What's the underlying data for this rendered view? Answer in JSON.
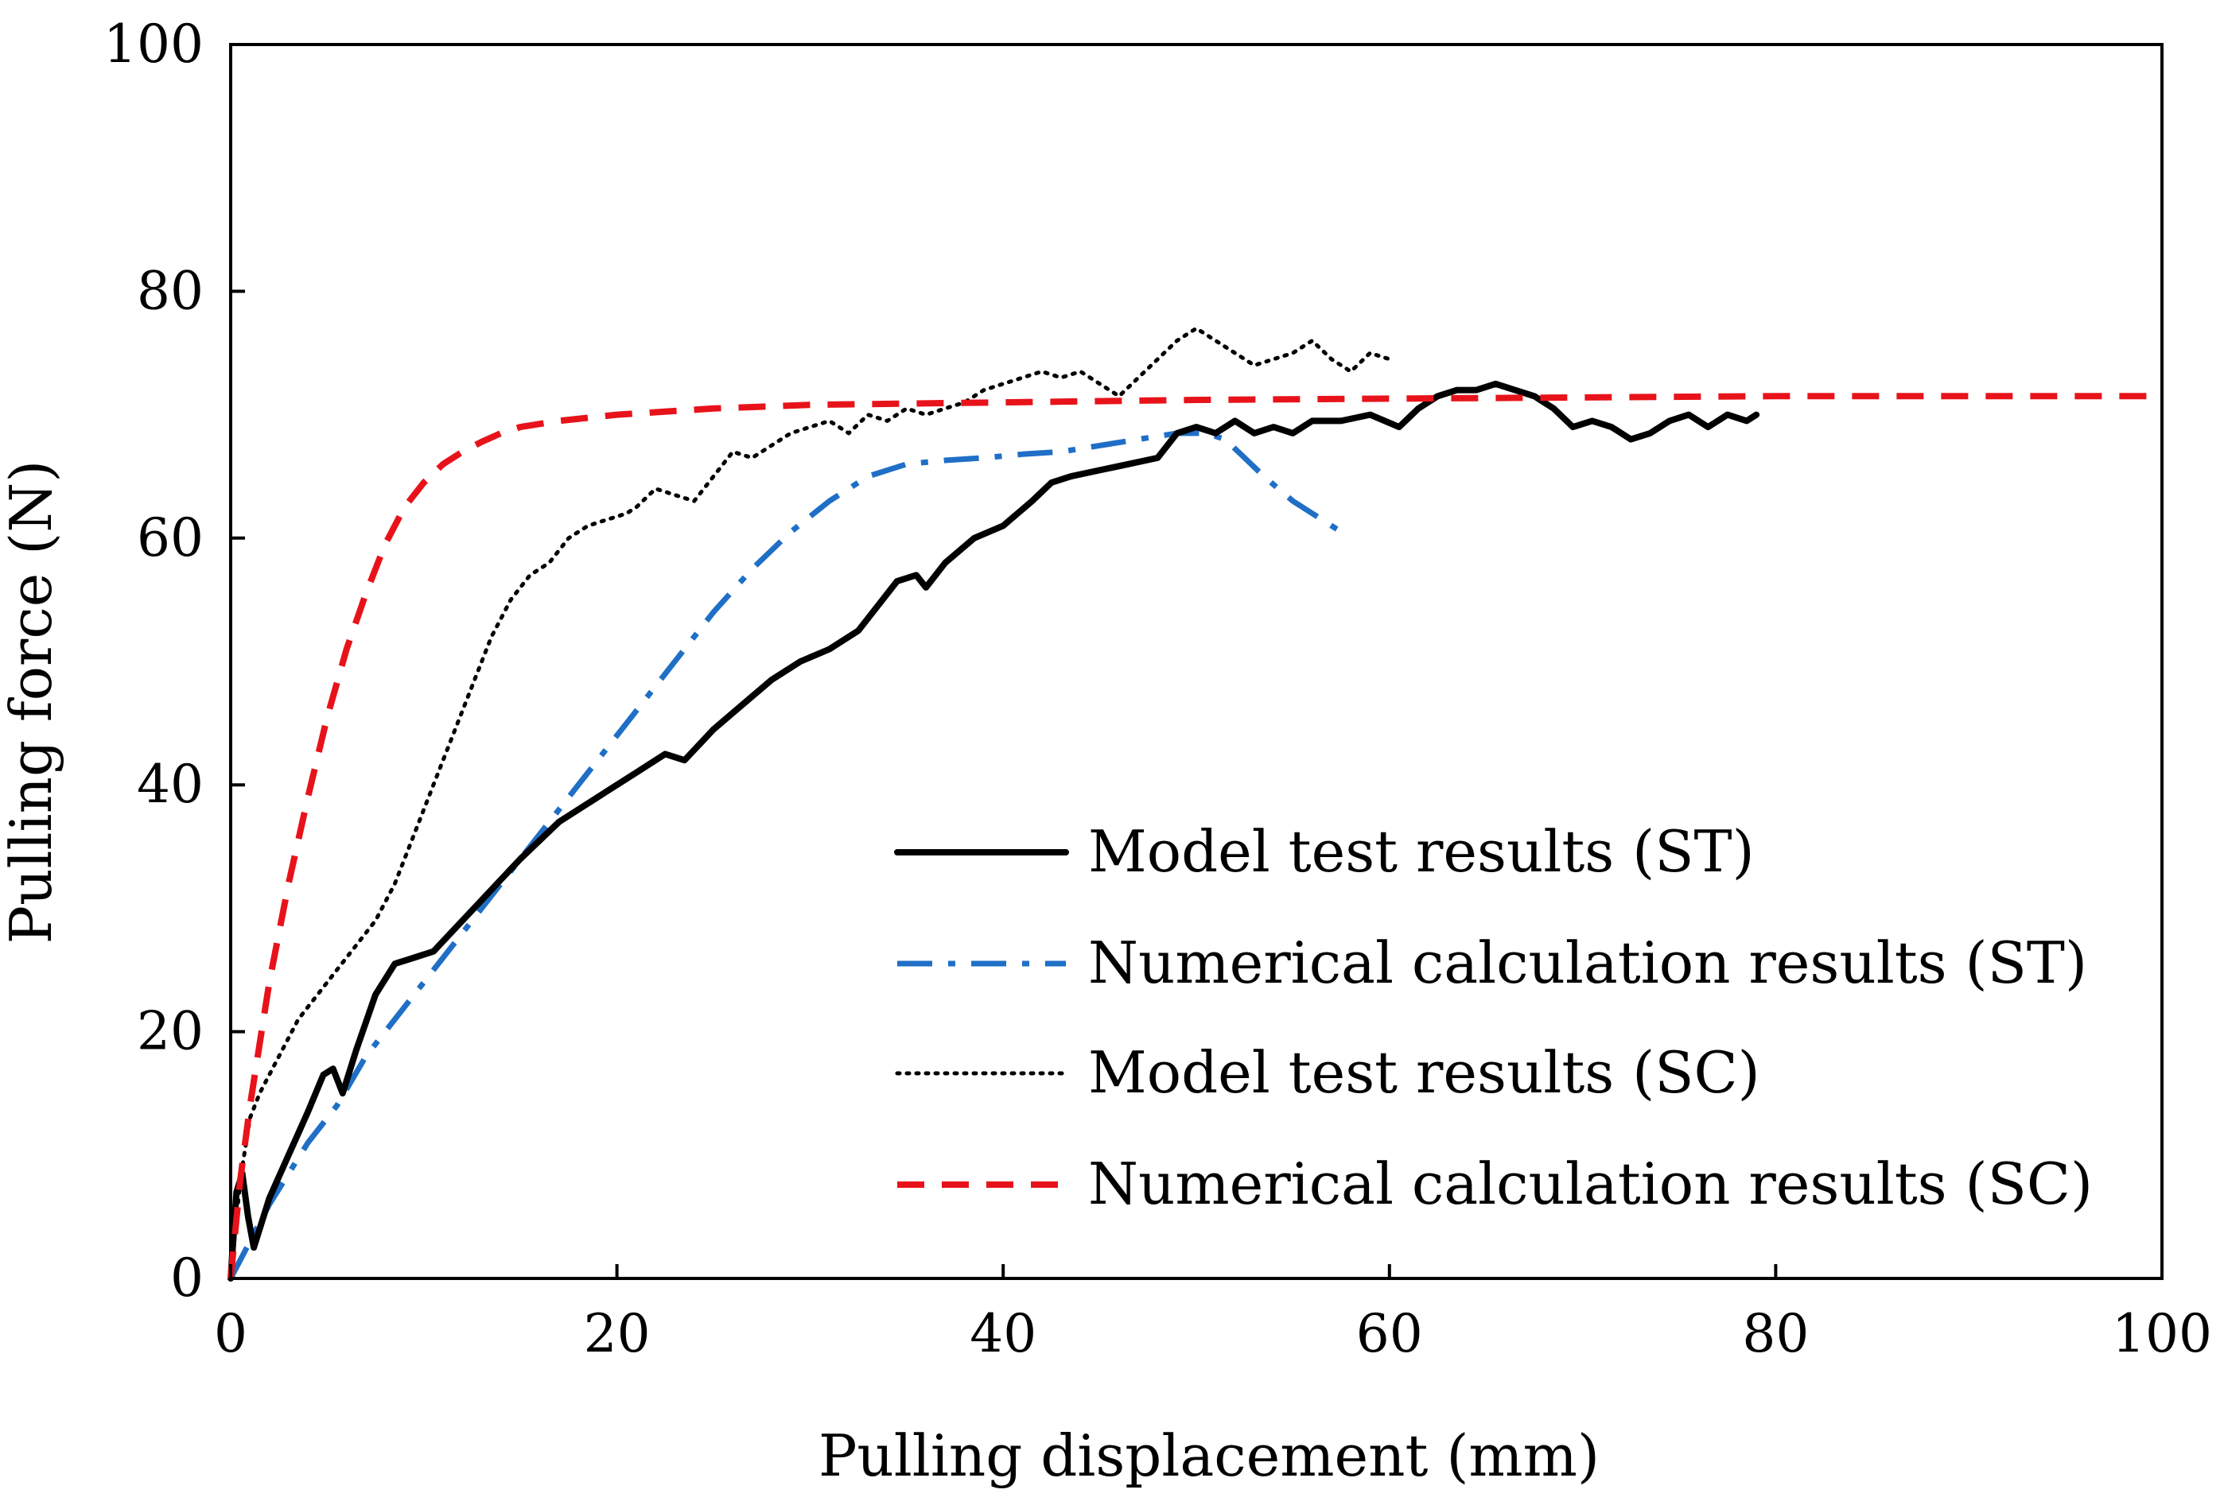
{
  "chart_data": {
    "type": "line",
    "title": "",
    "xlabel": "Pulling displacement (mm)",
    "ylabel": "Pulling force (N)",
    "xlim": [
      0,
      100
    ],
    "ylim": [
      0,
      100
    ],
    "xticks": [
      0,
      20,
      40,
      60,
      80,
      100
    ],
    "yticks": [
      0,
      20,
      40,
      60,
      80,
      100
    ],
    "grid": false,
    "legend_position": "bottom-right",
    "series": [
      {
        "name": "Model test results (ST)",
        "color": "#000000",
        "style": "solid",
        "x": [
          0,
          0.3,
          0.6,
          0.9,
          1.2,
          1.5,
          2,
          3,
          4,
          4.8,
          5.3,
          5.8,
          6.5,
          7.5,
          8.5,
          9.5,
          10.5,
          12,
          13.5,
          15,
          17,
          19,
          21,
          22.5,
          23.5,
          25,
          26.5,
          28,
          29.5,
          31,
          32.5,
          33.5,
          34.5,
          35.5,
          36,
          37,
          38.5,
          40,
          41.5,
          42.5,
          43.5,
          45,
          46.5,
          48,
          49,
          50,
          51,
          52,
          53,
          54,
          55,
          56,
          57.5,
          59,
          60.5,
          61.5,
          62.5,
          63.5,
          64.5,
          65.5,
          66.5,
          67.5,
          68.5,
          69.5,
          70.5,
          71.5,
          72.5,
          73.5,
          74.5,
          75.5,
          76.5,
          77.5,
          78.5,
          79
        ],
        "y": [
          0,
          7,
          8.5,
          5,
          2.5,
          4,
          6.5,
          10,
          13.5,
          16.5,
          17,
          15,
          18.5,
          23,
          25.5,
          26,
          26.5,
          29,
          31.5,
          34,
          37,
          39,
          41,
          42.5,
          42,
          44.5,
          46.5,
          48.5,
          50,
          51,
          52.5,
          54.5,
          56.5,
          57,
          56,
          58,
          60,
          61,
          63,
          64.5,
          65,
          65.5,
          66,
          66.5,
          68.5,
          69,
          68.5,
          69.5,
          68.5,
          69,
          68.5,
          69.5,
          69.5,
          70,
          69,
          70.5,
          71.5,
          72,
          72,
          72.5,
          72,
          71.5,
          70.5,
          69,
          69.5,
          69,
          68,
          68.5,
          69.5,
          70,
          69,
          70,
          69.5,
          70
        ]
      },
      {
        "name": "Numerical calculation results (ST)",
        "color": "#1f6fc6",
        "style": "dashdot",
        "x": [
          0,
          2,
          4,
          5.5,
          7,
          9,
          11,
          13,
          15,
          17,
          19,
          21,
          23,
          25,
          27,
          29,
          31,
          33,
          35,
          37,
          39,
          41,
          43,
          45,
          47,
          49,
          50.5,
          51.5,
          52.5,
          53.5,
          55,
          56.5,
          57.5
        ],
        "y": [
          0,
          6,
          11,
          14,
          18,
          22,
          26,
          30,
          34,
          38,
          42,
          46,
          50,
          54,
          57.5,
          60.5,
          63,
          65,
          66,
          66.3,
          66.5,
          66.8,
          67,
          67.5,
          68,
          68.5,
          68.5,
          68,
          66.5,
          65,
          63,
          61.5,
          60.5
        ]
      },
      {
        "name": "Model test results (SC)",
        "color": "#000000",
        "style": "dotted",
        "x": [
          0,
          0.5,
          1,
          1.5,
          2.5,
          3.5,
          4.5,
          5.5,
          6.5,
          7.5,
          8.5,
          9.5,
          10.5,
          11.5,
          12.5,
          13.5,
          14.5,
          15.5,
          16.5,
          17.5,
          18.5,
          19.5,
          20.5,
          21,
          22,
          23,
          24,
          25,
          26,
          27,
          28,
          29,
          30,
          31,
          32,
          33,
          34,
          35,
          36,
          37,
          38,
          39,
          40,
          41,
          42,
          43,
          44,
          45,
          46,
          47,
          48,
          49,
          50,
          51,
          52,
          53,
          54,
          55,
          56,
          57,
          58,
          59,
          60
        ],
        "y": [
          0,
          8,
          13,
          15,
          18,
          21,
          23,
          25,
          27,
          29,
          32,
          36,
          40,
          44,
          48,
          52,
          55,
          57,
          58,
          60,
          61,
          61.5,
          62,
          62.5,
          64,
          63.5,
          63,
          65,
          67,
          66.5,
          67.5,
          68.5,
          69,
          69.5,
          68.5,
          70,
          69.5,
          70.5,
          70,
          70.5,
          71,
          72,
          72.5,
          73,
          73.5,
          73,
          73.5,
          72.5,
          71.5,
          73,
          74.5,
          76,
          77,
          76,
          75,
          74,
          74.5,
          75,
          76,
          74.5,
          73.5,
          75,
          74.5
        ]
      },
      {
        "name": "Numerical calculation results (SC)",
        "color": "#e8131a",
        "style": "dashed",
        "x": [
          0,
          0.5,
          1,
          1.5,
          2,
          3,
          4,
          5,
          6,
          7,
          8,
          9,
          10,
          11,
          12,
          13,
          14,
          15,
          17,
          20,
          25,
          30,
          40,
          50,
          60,
          70,
          80,
          90,
          100
        ],
        "y": [
          0,
          8,
          14,
          19,
          24,
          32,
          39,
          45.5,
          51,
          55.5,
          59.5,
          62.5,
          64.5,
          66,
          67,
          67.8,
          68.5,
          69,
          69.5,
          70,
          70.5,
          70.8,
          71,
          71.2,
          71.3,
          71.4,
          71.5,
          71.5,
          71.5
        ]
      }
    ]
  }
}
